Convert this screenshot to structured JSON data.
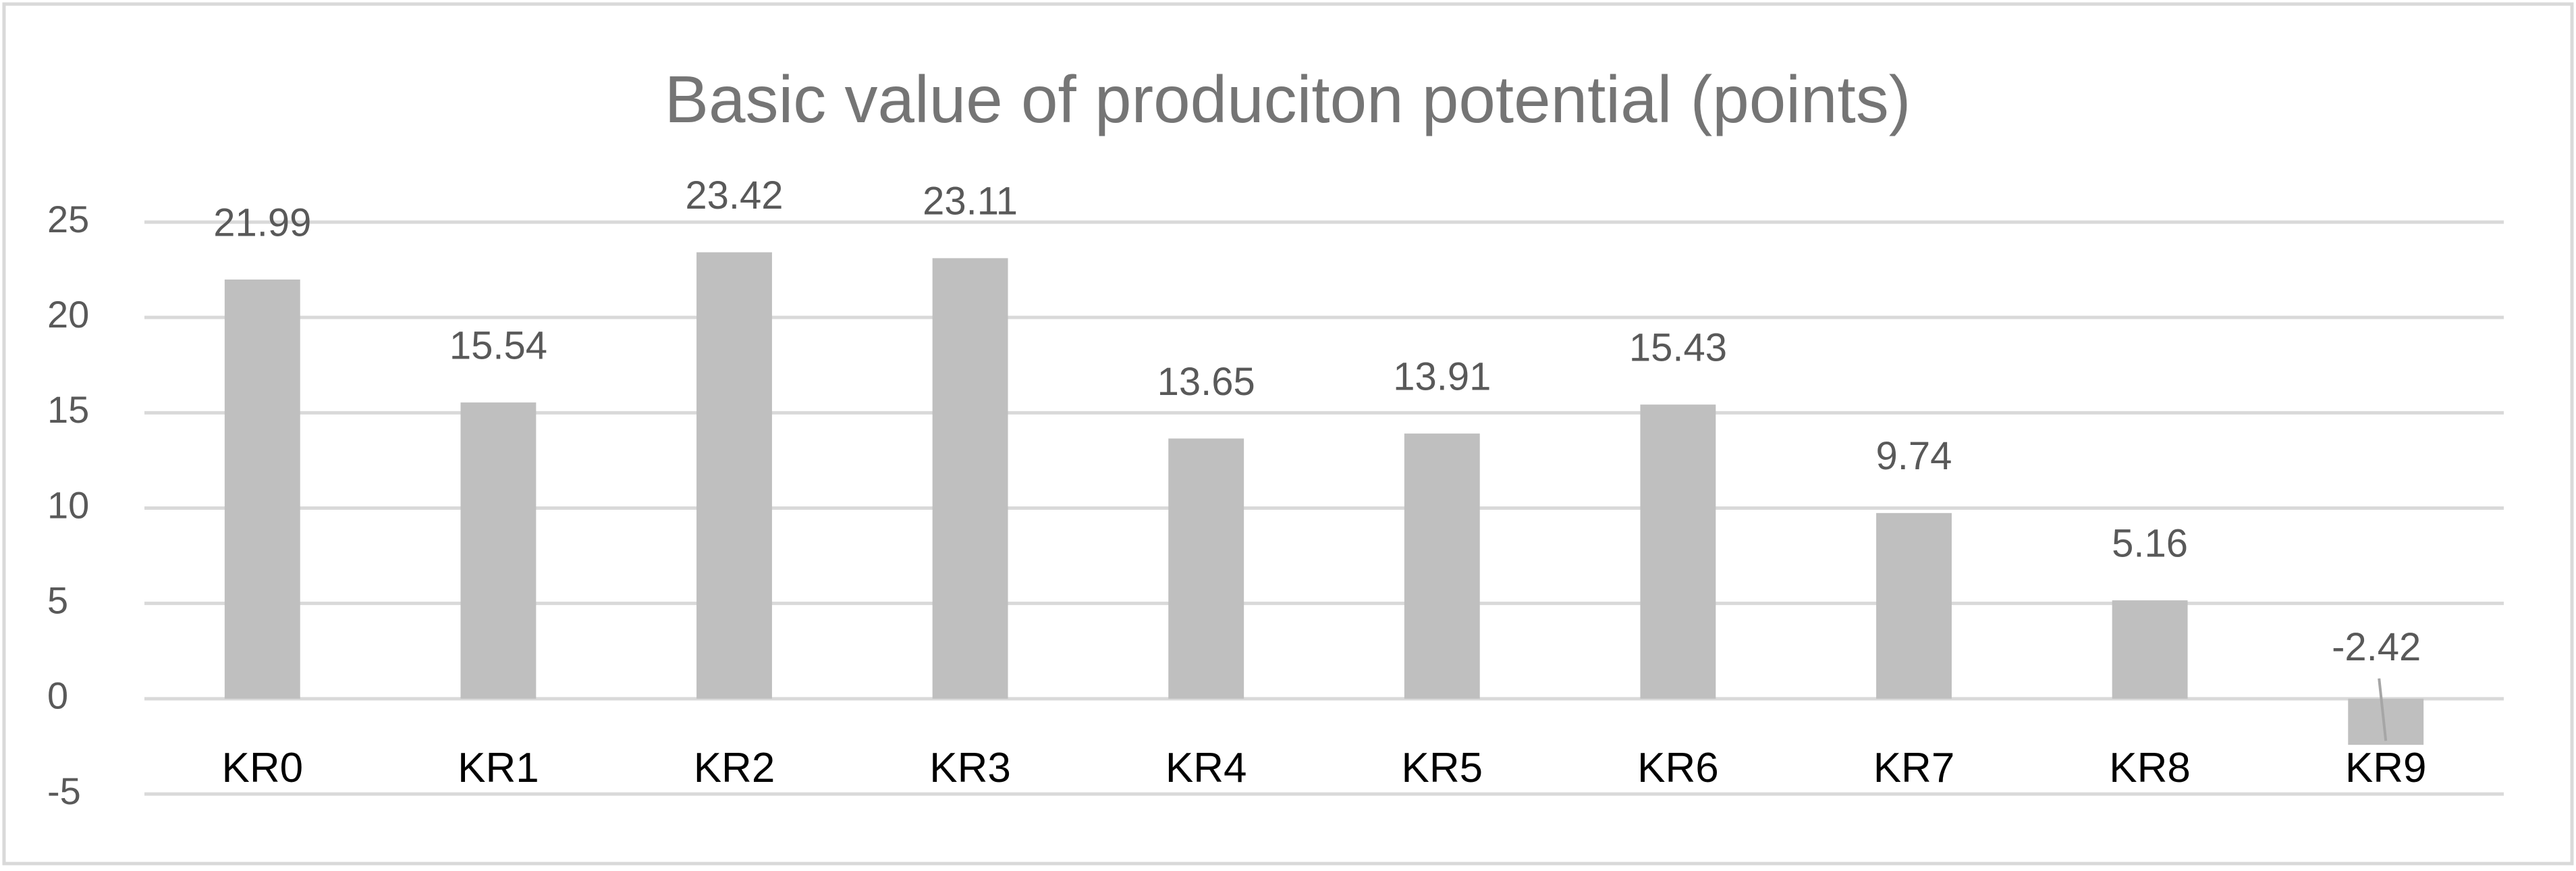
{
  "chart_data": {
    "type": "bar",
    "title": "Basic value of produciton potential (points)",
    "categories": [
      "KR0",
      "KR1",
      "KR2",
      "KR3",
      "KR4",
      "KR5",
      "KR6",
      "KR7",
      "KR8",
      "KR9"
    ],
    "values": [
      21.99,
      15.54,
      23.42,
      23.11,
      13.65,
      13.91,
      15.43,
      9.74,
      5.16,
      -2.42
    ],
    "color": "#bfbfbf",
    "ylim": [
      -5,
      25
    ],
    "yticks": [
      -5,
      0,
      5,
      10,
      15,
      20,
      25
    ],
    "grid": true
  }
}
